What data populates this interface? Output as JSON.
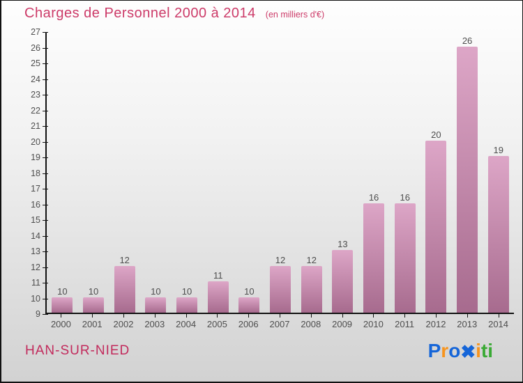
{
  "header": {
    "title": "Charges de Personnel 2000 à 2014",
    "subtitle": "(en milliers d'€)"
  },
  "chart_data": {
    "type": "bar",
    "categories": [
      "2000",
      "2001",
      "2002",
      "2003",
      "2004",
      "2005",
      "2006",
      "2007",
      "2008",
      "2009",
      "2010",
      "2011",
      "2012",
      "2013",
      "2014"
    ],
    "values": [
      10,
      10,
      12,
      10,
      10,
      11,
      10,
      12,
      12,
      13,
      16,
      16,
      20,
      26,
      19
    ],
    "title": "Charges de Personnel 2000 à 2014",
    "subtitle": "(en milliers d'€)",
    "xlabel": "",
    "ylabel": "",
    "ylim": [
      9,
      27
    ],
    "ytick_step": 1,
    "grid": false,
    "legend": "none",
    "data_labels": true,
    "bar_color_top": "#dda6c7",
    "bar_color_bottom": "#a76b8e"
  },
  "footer": {
    "location": "HAN-SUR-NIED",
    "logo": {
      "name": "Proxiti",
      "letters": [
        {
          "ch": "P",
          "color": "#1565d8"
        },
        {
          "ch": "r",
          "color": "#f7941d"
        },
        {
          "ch": "o",
          "color": "#1565d8"
        },
        {
          "ch": "✖",
          "color": "#1565d8"
        },
        {
          "ch": "i",
          "color": "#f7941d"
        },
        {
          "ch": "t",
          "color": "#3aaa35"
        },
        {
          "ch": "i",
          "color": "#3aaa35"
        }
      ]
    }
  },
  "colors": {
    "title_pink": "#cc3a68",
    "location_pink": "#c22a5c",
    "axis": "#111111",
    "tick_text": "#4d4d4d",
    "background_top": "#fefefe",
    "background_bottom": "#d2d2d2"
  }
}
